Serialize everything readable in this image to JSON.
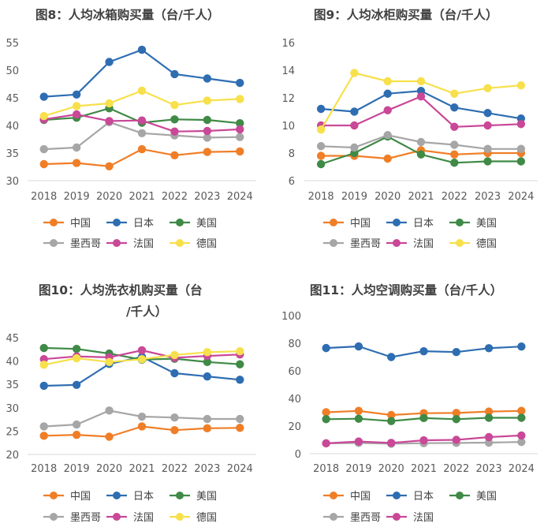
{
  "colors": {
    "中国": "#f07e27",
    "日本": "#2e6db1",
    "美国": "#3f8a46",
    "墨西哥": "#a6a6a6",
    "法国": "#c94897",
    "德国": "#f7e04b"
  },
  "chart_data": [
    {
      "type": "line",
      "title": "图8：人均冰箱购买量（台/千人）",
      "categories": [
        "2018",
        "2019",
        "2020",
        "2021",
        "2022",
        "2023",
        "2024"
      ],
      "ylim": [
        30,
        55
      ],
      "yticks": [
        30,
        35,
        40,
        45,
        50,
        55
      ],
      "series": [
        {
          "name": "中国",
          "values": [
            33.0,
            33.2,
            32.6,
            35.7,
            34.6,
            35.2,
            35.3
          ]
        },
        {
          "name": "日本",
          "values": [
            45.2,
            45.6,
            51.5,
            53.7,
            49.3,
            48.5,
            47.7
          ]
        },
        {
          "name": "美国",
          "values": [
            41.0,
            41.4,
            43.1,
            40.5,
            41.1,
            41.0,
            40.4
          ]
        },
        {
          "name": "墨西哥",
          "values": [
            35.7,
            36.0,
            40.6,
            38.6,
            38.2,
            37.8,
            37.9
          ]
        },
        {
          "name": "法国",
          "values": [
            41.1,
            42.0,
            40.8,
            40.9,
            38.9,
            39.0,
            39.3
          ]
        },
        {
          "name": "德国",
          "values": [
            41.7,
            43.5,
            44.0,
            46.3,
            43.7,
            44.5,
            44.8
          ]
        }
      ]
    },
    {
      "type": "line",
      "title": "图9：人均冰柜购买量（台/千人）",
      "categories": [
        "2018",
        "2019",
        "2020",
        "2021",
        "2022",
        "2023",
        "2024"
      ],
      "ylim": [
        6,
        16
      ],
      "yticks": [
        6,
        8,
        10,
        12,
        14,
        16
      ],
      "series": [
        {
          "name": "中国",
          "values": [
            7.8,
            7.8,
            7.6,
            8.2,
            7.9,
            8.0,
            8.0
          ]
        },
        {
          "name": "日本",
          "values": [
            11.2,
            11.0,
            12.3,
            12.5,
            11.3,
            10.9,
            10.5
          ]
        },
        {
          "name": "美国",
          "values": [
            7.2,
            8.0,
            9.2,
            7.9,
            7.3,
            7.4,
            7.4
          ]
        },
        {
          "name": "墨西哥",
          "values": [
            8.5,
            8.4,
            9.3,
            8.8,
            8.6,
            8.3,
            8.3
          ]
        },
        {
          "name": "法国",
          "values": [
            10.0,
            10.0,
            11.1,
            12.1,
            9.9,
            10.0,
            10.1
          ]
        },
        {
          "name": "德国",
          "values": [
            9.7,
            13.8,
            13.2,
            13.2,
            12.3,
            12.7,
            12.9
          ]
        }
      ]
    },
    {
      "type": "line",
      "title": "图10：人均洗衣机购买量（台/千人）",
      "categories": [
        "2018",
        "2019",
        "2020",
        "2021",
        "2022",
        "2023",
        "2024"
      ],
      "ylim": [
        20,
        45
      ],
      "yticks": [
        20,
        25,
        30,
        35,
        40,
        45
      ],
      "series": [
        {
          "name": "中国",
          "values": [
            24.0,
            24.2,
            23.8,
            26.0,
            25.2,
            25.6,
            25.7
          ]
        },
        {
          "name": "日本",
          "values": [
            34.7,
            34.9,
            39.4,
            40.9,
            37.4,
            36.7,
            36.0
          ]
        },
        {
          "name": "美国",
          "values": [
            42.8,
            42.6,
            41.6,
            40.3,
            40.5,
            39.8,
            39.3
          ]
        },
        {
          "name": "墨西哥",
          "values": [
            26.0,
            26.4,
            29.4,
            28.1,
            27.9,
            27.6,
            27.6
          ]
        },
        {
          "name": "法国",
          "values": [
            40.4,
            41.0,
            40.8,
            42.3,
            40.7,
            41.1,
            41.4
          ]
        },
        {
          "name": "德国",
          "values": [
            39.2,
            40.6,
            39.8,
            40.4,
            41.3,
            41.9,
            42.1
          ]
        }
      ]
    },
    {
      "type": "line",
      "title": "图11：人均空调购买量（台/千人）",
      "categories": [
        "2018",
        "2019",
        "2020",
        "2021",
        "2022",
        "2023",
        "2024"
      ],
      "ylim": [
        0,
        100
      ],
      "yticks": [
        0,
        20,
        40,
        60,
        80,
        100
      ],
      "series": [
        {
          "name": "中国",
          "values": [
            30.0,
            31.0,
            28.0,
            29.3,
            29.5,
            30.5,
            31.0
          ]
        },
        {
          "name": "日本",
          "values": [
            76.5,
            77.7,
            70.0,
            74.2,
            73.6,
            76.4,
            77.6
          ]
        },
        {
          "name": "美国",
          "values": [
            25.0,
            25.3,
            23.6,
            25.8,
            25.0,
            26.0,
            26.0
          ]
        },
        {
          "name": "墨西哥",
          "values": [
            7.5,
            7.8,
            7.2,
            7.6,
            7.8,
            8.0,
            8.5
          ]
        },
        {
          "name": "法国",
          "values": [
            7.5,
            8.8,
            7.8,
            9.7,
            10.0,
            12.0,
            13.2
          ]
        }
      ]
    }
  ]
}
